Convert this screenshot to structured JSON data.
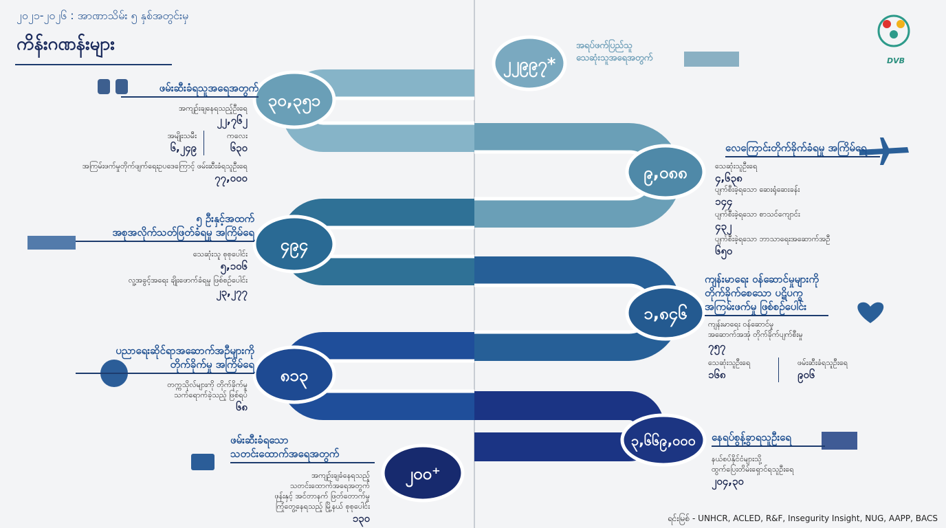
{
  "header": {
    "subtitle": "၂၀၂၁-၂၀၂၆ : အာဏာသိမ်း ၅ နှစ်အတွင်းမှ",
    "title": "ကိန်းဂဏန်းများ",
    "logo": "DVB"
  },
  "sections": [
    {
      "number": "၂၂၉၉၇*",
      "heading": [
        "အရပ်ဖက်ပြည်သူ",
        "သေဆုံးသူအရေအတွက်"
      ],
      "items": []
    },
    {
      "number": "၃၀,၃၅၁",
      "heading": [
        "ဖမ်းဆီးခံရသူအရေအတွက်"
      ],
      "items": [
        {
          "label": [
            "အကျဉ်းချနေရသည့်ဦးရေ"
          ],
          "value": "၂၂,၇၆၂"
        },
        {
          "label": [
            "အမျိုးသမီး"
          ],
          "value": "၆,၂၄၉"
        },
        {
          "label": [
            "ကလေး"
          ],
          "value": "၆၃၀"
        },
        {
          "label": [
            "အကြမ်းဖက်မှုတိုက်ဖျက်ရေးဥပဒေကြောင့် ဖမ်းဆီးခံရသူဦးရေ"
          ],
          "value": "၇၇,၀၀၀"
        }
      ]
    },
    {
      "number": "၉,၀၈၈",
      "heading": [
        "လေကြောင်းတိုက်ခိုက်ခံရမှု အကြိမ်ရေ"
      ],
      "items": [
        {
          "label": [
            "သေဆုံးသူဦးရေ"
          ],
          "value": "၄,၆၃၈"
        },
        {
          "label": [
            "ပျက်စီးခဲ့ရသော ဆေးရုံဆေးခန်း"
          ],
          "value": "၁၄၄"
        },
        {
          "label": [
            "ပျက်စီးခဲ့ရသော စာသင်ကျောင်း"
          ],
          "value": "၄၃၂"
        },
        {
          "label": [
            "ပျက်စီးခဲ့ရသော ဘာသာရေးအဆောက်အဦ"
          ],
          "value": "၆၅၀"
        }
      ]
    },
    {
      "number": "၄၉၄",
      "heading": [
        "၅ ဦးနှင့်အထက်",
        "အစုအလိုက်သတ်ဖြတ်ခံရမှု အကြိမ်ရေ"
      ],
      "items": [
        {
          "label": [
            "သေဆုံးသူ စုစုပေါင်း"
          ],
          "value": "၅,၁၀၆"
        },
        {
          "label": [
            "လူ့အခွင့်အရေး ချိုးဖောက်ခံရမှု ဖြစ်စဉ်ပေါင်း"
          ],
          "value": "၂၃,၂၇၇"
        }
      ]
    },
    {
      "number": "၁,၈၄၆",
      "heading": [
        "ကျန်းမာရေး ဝန်ဆောင်မှုများကို",
        "တိုက်ခိုက်စေသော ပဋိပက္ခ",
        "အကြမ်းဖက်မှု ဖြစ်စဉ်ပေါင်း"
      ],
      "items": [
        {
          "label": [
            "ကျန်းမာရေး ဝန်ဆောင်မှု",
            "အဆောက်အအုံ တိုက်ခိုက်ပျက်စီးမှု"
          ],
          "value": "၇၅၇"
        },
        {
          "label": [
            "သေဆုံးသူဦးရေ"
          ],
          "value": "၁၆၈"
        },
        {
          "label": [
            "ဖမ်းဆီးခံရသူဦးရေ"
          ],
          "value": "၉၀၆"
        }
      ]
    },
    {
      "number": "၈၁၃",
      "heading": [
        "ပညာရေးဆိုင်ရာအဆောက်အဦများကို",
        "တိုက်ခိုက်မှု အကြိမ်ရေ"
      ],
      "items": [
        {
          "label": [
            "တက္ကသိုလ်များကို တိုက်ခိုက်မှု",
            "သက်ရောက်ခဲ့သည့် ဖြစ်ရပ်"
          ],
          "value": "၆၈"
        }
      ]
    },
    {
      "number": "၃,၆၆၉,၀၀၀",
      "heading": [
        "နေရပ်စွန့်ခွာရသူဦးရေ"
      ],
      "items": [
        {
          "label": [
            "နယ်စပ်နိုင်ငံများသို့",
            "ထွက်ပြေးတိမ်းရှောင်ရသူဦးရေ"
          ],
          "value": "၂၀၄,၃၀"
        }
      ]
    },
    {
      "number": "၂၀၀⁺",
      "heading": [
        "ဖမ်းဆီးခံရသော",
        "သတင်းထောက်အရေအတွက်"
      ],
      "items": [
        {
          "label": [
            "အကျဉ်းချခံနေရသည့်",
            "သတင်းထောက်အရေအတွက်",
            "ဖုန်းနှင့် အင်တာနက် ဖြတ်တောက်မှု",
            "ကြုံတွေ့နေရသည့် မြို့နယ် စုစုပေါင်း"
          ],
          "value": "၁၃၀"
        }
      ]
    }
  ],
  "source": "ရင်းမြစ် - UNHCR, ACLED, R&F,  Insegurity Insight, NUG, AAPP, BACS"
}
